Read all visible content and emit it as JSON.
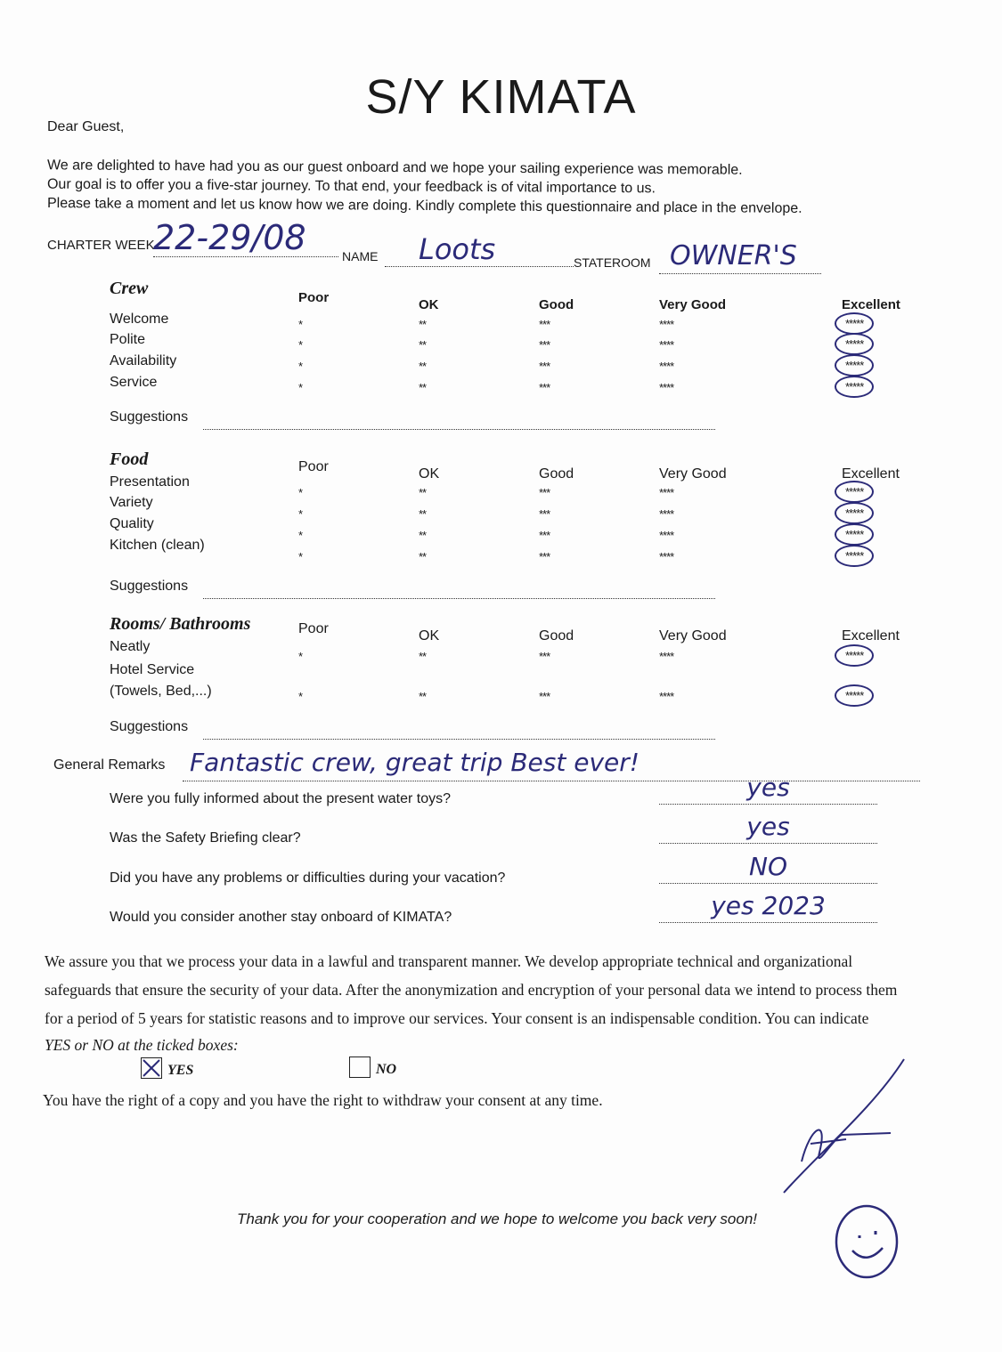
{
  "title": "S/Y KIMATA",
  "greeting": "Dear Guest,",
  "intro": [
    "We are delighted to have had you as our guest onboard and we hope your sailing experience was memorable.",
    "Our goal is to offer you a five-star journey. To that end, your feedback is of vital importance to us.",
    "Please take a moment and let us know how we are doing. Kindly complete this questionnaire and place in the envelope."
  ],
  "fields": {
    "charter_week_label": "CHARTER WEEK",
    "charter_week": "22-29/08",
    "name_label": "NAME",
    "name": "Loots",
    "stateroom_label": "STATEROOM",
    "stateroom": "OWNER'S"
  },
  "rating_columns": [
    "Poor",
    "OK",
    "Good",
    "Very Good",
    "Excellent"
  ],
  "rating_stars": [
    "*",
    "**",
    "***",
    "****",
    "*****"
  ],
  "suggestions_label": "Suggestions",
  "sections": [
    {
      "title": "Crew",
      "items": [
        "Welcome",
        "Polite",
        "Availability",
        "Service"
      ],
      "selected": [
        "Excellent",
        "Excellent",
        "Excellent",
        "Excellent"
      ]
    },
    {
      "title": "Food",
      "items": [
        "Presentation",
        "Variety",
        "Quality",
        "Kitchen (clean)"
      ],
      "selected": [
        "Excellent",
        "Excellent",
        "Excellent",
        "Excellent"
      ]
    },
    {
      "title": "Rooms/ Bathrooms",
      "items": [
        "Neatly",
        "Hotel Service (Towels, Bed,...)"
      ],
      "selected": [
        "Excellent",
        "Excellent"
      ]
    }
  ],
  "general_remarks": {
    "label": "General Remarks",
    "value": "Fantastic crew, great trip Best ever!"
  },
  "questions": [
    {
      "q": "Were you fully informed about the present water toys?",
      "a": "yes"
    },
    {
      "q": "Was the Safety Briefing clear?",
      "a": "yes"
    },
    {
      "q": "Did you have any problems or difficulties during your vacation?",
      "a": "NO"
    },
    {
      "q": "Would you consider another stay onboard of KIMATA?",
      "a": "yes 2023"
    }
  ],
  "privacy": [
    "We assure you that we process your data in a lawful and transparent manner. We develop appropriate technical and organizational",
    "safeguards that ensure the security of your data. After the anonymization and encryption of your personal data we intend to process them",
    "for a period of 5 years for statistic reasons and to improve our services. Your consent is an indispensable condition. You can indicate",
    "YES or NO at the ticked boxes:"
  ],
  "consent": {
    "yes_label": "YES",
    "no_label": "NO",
    "yes_checked": true,
    "no_checked": false
  },
  "rights": "You have the right of a copy and you have the right to withdraw your consent at any time.",
  "closing": "Thank you for your cooperation and we hope to welcome you back very soon!",
  "ink_color": "#2b2a78"
}
